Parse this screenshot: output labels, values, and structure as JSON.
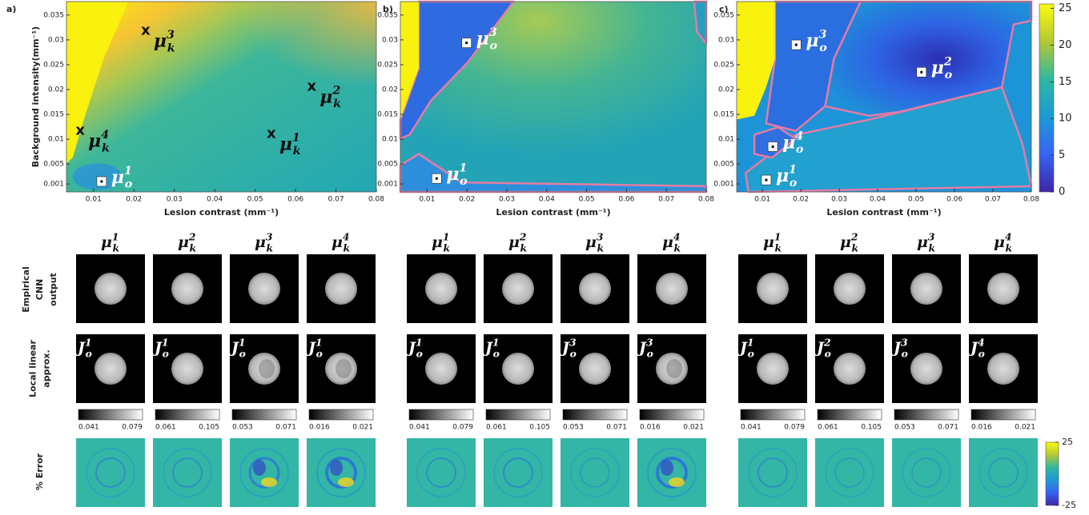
{
  "panels": [
    {
      "label": "a)",
      "y_axis_label": "Background intensity(mm⁻¹)",
      "x_axis_label": "Lesion contrast (mm⁻¹)",
      "xlim": [
        0.0033,
        0.08
      ],
      "ylim": [
        -0.0006,
        0.0377
      ],
      "xticks": [
        0.01,
        0.02,
        0.03,
        0.04,
        0.05,
        0.06,
        0.07,
        0.08
      ],
      "yticks": [
        0.001,
        0.005,
        0.01,
        0.015,
        0.02,
        0.025,
        0.03,
        0.035
      ],
      "points": [
        {
          "marker": "square",
          "x": 0.012,
          "y": 0.0015,
          "label": {
            "symbol": "μ",
            "sub": "o",
            "sup": "1"
          }
        },
        {
          "marker": "x",
          "x": 0.054,
          "y": 0.0111,
          "label": {
            "symbol": "μ",
            "sub": "k",
            "sup": "1"
          }
        },
        {
          "marker": "x",
          "x": 0.064,
          "y": 0.0206,
          "label": {
            "symbol": "μ",
            "sub": "k",
            "sup": "2"
          }
        },
        {
          "marker": "x",
          "x": 0.0229,
          "y": 0.0318,
          "label": {
            "symbol": "μ",
            "sub": "k",
            "sup": "3"
          }
        },
        {
          "marker": "x",
          "x": 0.0067,
          "y": 0.0117,
          "label": {
            "symbol": "μ",
            "sub": "k",
            "sup": "4"
          }
        }
      ]
    },
    {
      "label": "b)",
      "x_axis_label": "Lesion contrast (mm⁻¹)",
      "xlim": [
        0.0033,
        0.08
      ],
      "ylim": [
        -0.0006,
        0.0377
      ],
      "xticks": [
        0.01,
        0.02,
        0.03,
        0.04,
        0.05,
        0.06,
        0.07,
        0.08
      ],
      "yticks": [
        0.001,
        0.005,
        0.01,
        0.015,
        0.02,
        0.025,
        0.03,
        0.035
      ],
      "points": [
        {
          "marker": "square",
          "x": 0.0124,
          "y": 0.0021,
          "label": {
            "symbol": "μ",
            "sub": "o",
            "sup": "1"
          }
        },
        {
          "marker": "square",
          "x": 0.0199,
          "y": 0.0294,
          "label": {
            "symbol": "μ",
            "sub": "o",
            "sup": "3"
          }
        }
      ]
    },
    {
      "label": "c)",
      "x_axis_label": "Lesion contrast (mm⁻¹)",
      "xlim": [
        0.0033,
        0.08
      ],
      "ylim": [
        -0.0006,
        0.0377
      ],
      "xticks": [
        0.01,
        0.02,
        0.03,
        0.04,
        0.05,
        0.06,
        0.07,
        0.08
      ],
      "yticks": [
        0.001,
        0.005,
        0.01,
        0.015,
        0.02,
        0.025,
        0.03,
        0.035
      ],
      "points": [
        {
          "marker": "square",
          "x": 0.011,
          "y": 0.0018,
          "label": {
            "symbol": "μ",
            "sub": "o",
            "sup": "1"
          }
        },
        {
          "marker": "square",
          "x": 0.0514,
          "y": 0.0235,
          "label": {
            "symbol": "μ",
            "sub": "o",
            "sup": "2"
          }
        },
        {
          "marker": "square",
          "x": 0.0188,
          "y": 0.029,
          "label": {
            "symbol": "μ",
            "sub": "o",
            "sup": "3"
          }
        },
        {
          "marker": "square",
          "x": 0.0127,
          "y": 0.0085,
          "label": {
            "symbol": "μ",
            "sub": "o",
            "sup": "4"
          }
        }
      ]
    }
  ],
  "colorbar": {
    "lim": [
      0,
      25.6
    ],
    "ticks": [
      0,
      5,
      10,
      15,
      20,
      25
    ]
  },
  "row_labels": [
    [
      "Empirical",
      "CNN",
      "output"
    ],
    [
      "Local linear",
      "approx."
    ],
    [
      "% Error"
    ]
  ],
  "comparisons": [
    {
      "columns": [
        {
          "header": {
            "symbol": "μ",
            "sub": "k",
            "sup": "1"
          },
          "approx": {
            "symbol": "J",
            "sub": "o",
            "sup": "1"
          },
          "range": [
            0.041,
            0.079
          ]
        },
        {
          "header": {
            "symbol": "μ",
            "sub": "k",
            "sup": "2"
          },
          "approx": {
            "symbol": "J",
            "sub": "o",
            "sup": "1"
          },
          "range": [
            0.061,
            0.105
          ]
        },
        {
          "header": {
            "symbol": "μ",
            "sub": "k",
            "sup": "3"
          },
          "approx": {
            "symbol": "J",
            "sub": "o",
            "sup": "1"
          },
          "range": [
            0.053,
            0.071
          ]
        },
        {
          "header": {
            "symbol": "μ",
            "sub": "k",
            "sup": "4"
          },
          "approx": {
            "symbol": "J",
            "sub": "o",
            "sup": "1"
          },
          "range": [
            0.016,
            0.021
          ]
        }
      ]
    },
    {
      "columns": [
        {
          "header": {
            "symbol": "μ",
            "sub": "k",
            "sup": "1"
          },
          "approx": {
            "symbol": "J",
            "sub": "o",
            "sup": "1"
          },
          "range": [
            0.041,
            0.079
          ]
        },
        {
          "header": {
            "symbol": "μ",
            "sub": "k",
            "sup": "2"
          },
          "approx": {
            "symbol": "J",
            "sub": "o",
            "sup": "1"
          },
          "range": [
            0.061,
            0.105
          ]
        },
        {
          "header": {
            "symbol": "μ",
            "sub": "k",
            "sup": "3"
          },
          "approx": {
            "symbol": "J",
            "sub": "o",
            "sup": "3"
          },
          "range": [
            0.053,
            0.071
          ]
        },
        {
          "header": {
            "symbol": "μ",
            "sub": "k",
            "sup": "4"
          },
          "approx": {
            "symbol": "J",
            "sub": "o",
            "sup": "3"
          },
          "range": [
            0.016,
            0.021
          ]
        }
      ]
    },
    {
      "columns": [
        {
          "header": {
            "symbol": "μ",
            "sub": "k",
            "sup": "1"
          },
          "approx": {
            "symbol": "J",
            "sub": "o",
            "sup": "1"
          },
          "range": [
            0.041,
            0.079
          ]
        },
        {
          "header": {
            "symbol": "μ",
            "sub": "k",
            "sup": "2"
          },
          "approx": {
            "symbol": "J",
            "sub": "o",
            "sup": "2"
          },
          "range": [
            0.061,
            0.105
          ]
        },
        {
          "header": {
            "symbol": "μ",
            "sub": "k",
            "sup": "3"
          },
          "approx": {
            "symbol": "J",
            "sub": "o",
            "sup": "3"
          },
          "range": [
            0.053,
            0.071
          ]
        },
        {
          "header": {
            "symbol": "μ",
            "sub": "k",
            "sup": "4"
          },
          "approx": {
            "symbol": "J",
            "sub": "o",
            "sup": "4"
          },
          "range": [
            0.016,
            0.021
          ]
        }
      ]
    }
  ],
  "error_colorbar": {
    "ticks": [
      25,
      -25
    ]
  }
}
